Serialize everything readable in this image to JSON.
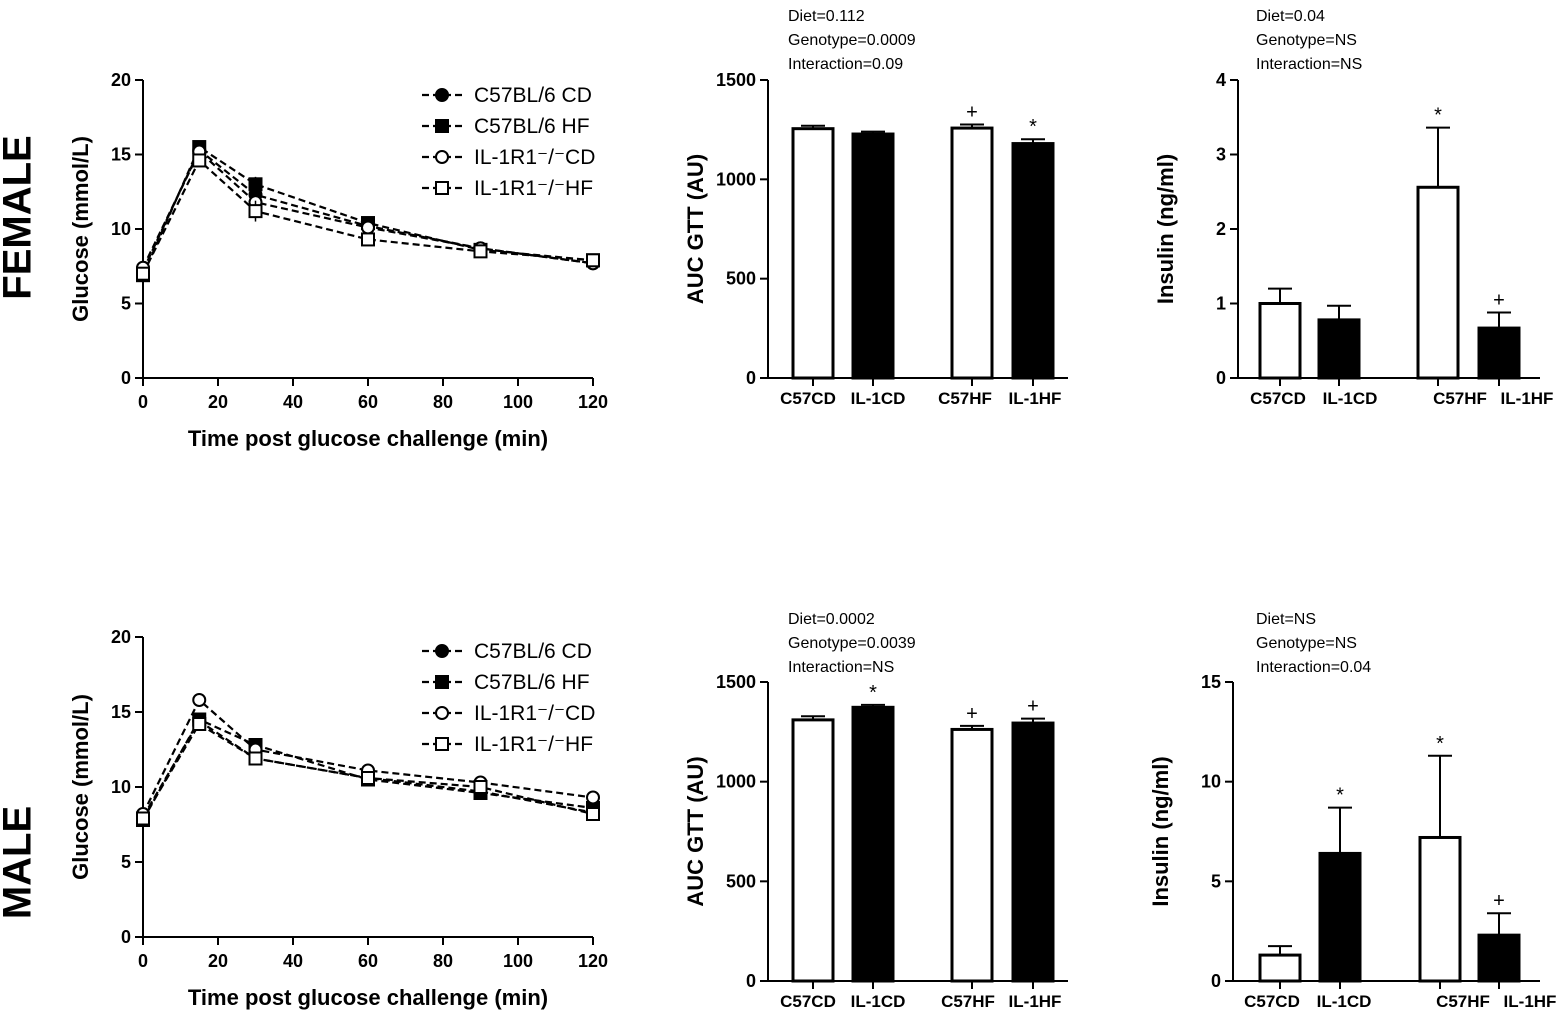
{
  "row_labels": [
    "FEMALE",
    "MALE"
  ],
  "chart_data": [
    {
      "type": "line",
      "title": "",
      "xlabel": "Time post glucose challenge (min)",
      "ylabel": "Glucose (mmol/L)",
      "xlim": [
        0,
        120
      ],
      "ylim": [
        0,
        20
      ],
      "xticks": [
        0,
        20,
        40,
        60,
        80,
        100,
        120
      ],
      "yticks": [
        0,
        5,
        10,
        15,
        20
      ],
      "x": [
        0,
        15,
        30,
        60,
        90,
        120
      ],
      "legend": [
        "C57BL/6 CD",
        "C57BL/6 HF",
        "IL-1R1⁻/⁻CD",
        "IL-1R1⁻/⁻HF"
      ],
      "series": [
        {
          "name": "C57BL/6 CD",
          "marker": "filled-circle",
          "values": [
            7.2,
            15.3,
            12.3,
            10.2,
            8.7,
            7.7
          ],
          "errors": [
            0.3,
            0.4,
            0.6,
            0.3,
            0.2,
            0.2
          ]
        },
        {
          "name": "C57BL/6 HF",
          "marker": "filled-square",
          "values": [
            6.9,
            15.5,
            13.0,
            10.4,
            8.6,
            7.9
          ],
          "errors": [
            0.3,
            0.4,
            0.5,
            0.3,
            0.2,
            0.2
          ]
        },
        {
          "name": "IL-1R1-/-CD",
          "marker": "open-circle",
          "values": [
            7.4,
            15.2,
            11.8,
            10.1,
            8.7,
            7.7
          ],
          "errors": [
            0.3,
            0.4,
            0.6,
            0.3,
            0.2,
            0.2
          ]
        },
        {
          "name": "IL-1R1-/-HF",
          "marker": "open-square",
          "values": [
            7.0,
            14.6,
            11.2,
            9.3,
            8.5,
            7.9
          ],
          "errors": [
            0.3,
            0.4,
            0.7,
            0.3,
            0.2,
            0.2
          ]
        }
      ]
    },
    {
      "type": "bar",
      "stats": [
        "Diet=0.112",
        "Genotype=0.0009",
        "Interaction=0.09"
      ],
      "ylabel": "AUC GTT (AU)",
      "ylim": [
        0,
        1500
      ],
      "yticks": [
        0,
        500,
        1000,
        1500
      ],
      "categories": [
        "C57CD",
        "IL-1CD",
        "C57HF",
        "IL-1HF"
      ],
      "fills": [
        "open",
        "filled",
        "open",
        "filled"
      ],
      "values": [
        1255,
        1228,
        1258,
        1180
      ],
      "errors": [
        15,
        12,
        18,
        22
      ],
      "marks": [
        "",
        "",
        "+",
        "*"
      ]
    },
    {
      "type": "bar",
      "stats": [
        "Diet=0.04",
        "Genotype=NS",
        "Interaction=NS"
      ],
      "ylabel": "Insulin (ng/ml)",
      "ylim": [
        0,
        4
      ],
      "yticks": [
        0,
        1,
        2,
        3,
        4
      ],
      "categories": [
        "C57CD",
        "IL-1CD",
        "C57HF",
        "IL-1HF"
      ],
      "fills": [
        "open",
        "filled",
        "open",
        "filled"
      ],
      "values": [
        1.0,
        0.78,
        2.56,
        0.67
      ],
      "errors": [
        0.2,
        0.19,
        0.8,
        0.21
      ],
      "marks": [
        "",
        "",
        "*",
        "+"
      ]
    },
    {
      "type": "line",
      "title": "",
      "xlabel": "Time post glucose challenge (min)",
      "ylabel": "Glucose (mmol/L)",
      "xlim": [
        0,
        120
      ],
      "ylim": [
        0,
        20
      ],
      "xticks": [
        0,
        20,
        40,
        60,
        80,
        100,
        120
      ],
      "yticks": [
        0,
        5,
        10,
        15,
        20
      ],
      "x": [
        0,
        15,
        30,
        60,
        90,
        120
      ],
      "legend": [
        "C57BL/6 CD",
        "C57BL/6 HF",
        "IL-1R1⁻/⁻CD",
        "IL-1R1⁻/⁻HF"
      ],
      "series": [
        {
          "name": "C57BL/6 CD",
          "marker": "filled-circle",
          "values": [
            8.0,
            14.4,
            11.9,
            10.6,
            9.7,
            8.3
          ],
          "errors": [
            0.2,
            0.3,
            0.3,
            0.2,
            0.2,
            0.2
          ]
        },
        {
          "name": "C57BL/6 HF",
          "marker": "filled-square",
          "values": [
            7.8,
            14.5,
            12.8,
            10.5,
            9.6,
            8.6
          ],
          "errors": [
            0.2,
            0.3,
            0.3,
            0.2,
            0.2,
            0.2
          ]
        },
        {
          "name": "IL-1R1-/-CD",
          "marker": "open-circle",
          "values": [
            8.2,
            15.8,
            12.5,
            11.1,
            10.3,
            9.3
          ],
          "errors": [
            0.2,
            0.3,
            0.3,
            0.2,
            0.2,
            0.2
          ]
        },
        {
          "name": "IL-1R1-/-HF",
          "marker": "open-square",
          "values": [
            7.9,
            14.2,
            11.9,
            10.6,
            10.0,
            8.2
          ],
          "errors": [
            0.2,
            0.3,
            0.3,
            0.2,
            0.2,
            0.2
          ]
        }
      ]
    },
    {
      "type": "bar",
      "stats": [
        "Diet=0.0002",
        "Genotype=0.0039",
        "Interaction=NS"
      ],
      "ylabel": "AUC GTT (AU)",
      "ylim": [
        0,
        1500
      ],
      "yticks": [
        0,
        500,
        1000,
        1500
      ],
      "categories": [
        "C57CD",
        "IL-1CD",
        "C57HF",
        "IL-1HF"
      ],
      "fills": [
        "open",
        "filled",
        "open",
        "filled"
      ],
      "values": [
        1310,
        1373,
        1262,
        1294
      ],
      "errors": [
        18,
        12,
        18,
        22
      ],
      "marks": [
        "",
        "*",
        "+",
        "+"
      ]
    },
    {
      "type": "bar",
      "stats": [
        "Diet=NS",
        "Genotype=NS",
        "Interaction=0.04"
      ],
      "ylabel": "Insulin (ng/ml)",
      "ylim": [
        0,
        15
      ],
      "yticks": [
        0,
        5,
        10,
        15
      ],
      "categories": [
        "C57CD",
        "IL-1CD",
        "C57HF",
        "IL-1HF"
      ],
      "fills": [
        "open",
        "filled",
        "open",
        "filled"
      ],
      "values": [
        1.3,
        6.4,
        7.2,
        2.3
      ],
      "errors": [
        0.45,
        2.3,
        4.1,
        1.1
      ],
      "marks": [
        "",
        "*",
        "*",
        "+"
      ]
    }
  ]
}
